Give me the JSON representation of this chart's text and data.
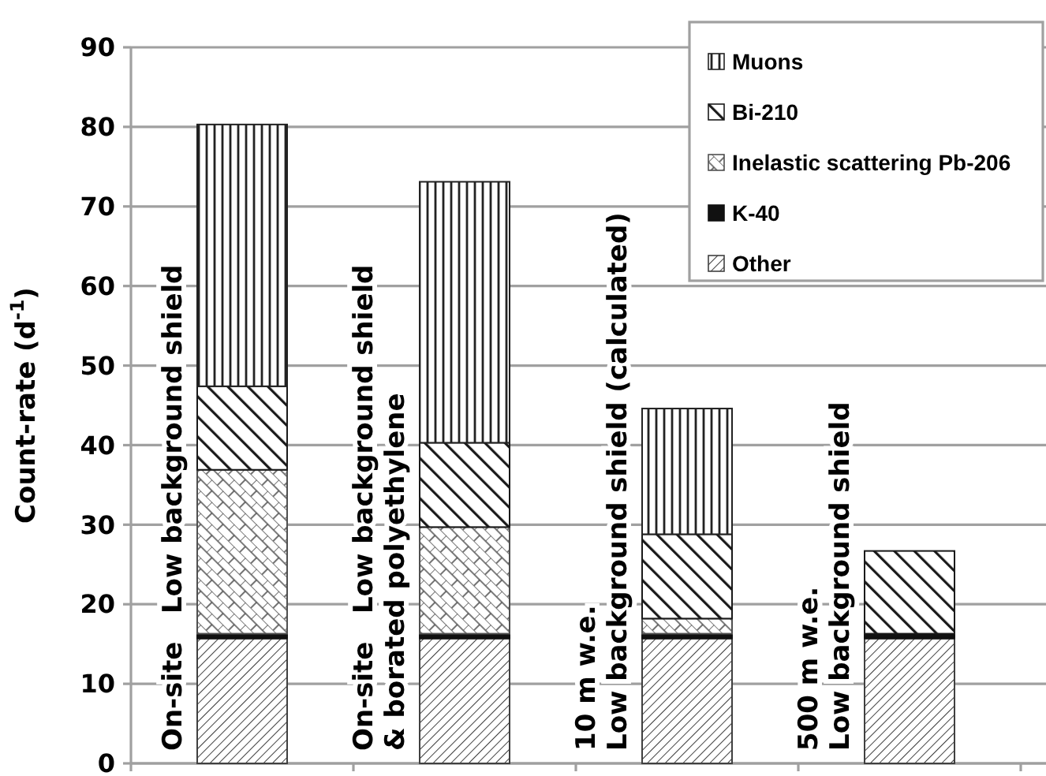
{
  "chart_data": {
    "type": "bar",
    "stacked": true,
    "ylabel": "Count-rate (d$^{-1}$)",
    "categories": [
      "On-site   Low background shield",
      "On-site   Low background shield\n& borated polyethylene",
      "10 m w.e.\nLow background shield (calculated)",
      "500 m w.e.\nLow background shield"
    ],
    "series": [
      {
        "name": "Other",
        "color": "#404040",
        "values": [
          15.7,
          15.7,
          15.7,
          15.7
        ]
      },
      {
        "name": "K-40",
        "color": "#111111",
        "values": [
          0.6,
          0.6,
          0.6,
          0.6
        ]
      },
      {
        "name": "Inelastic scattering Pb-206",
        "color": "#505050",
        "values": [
          20.6,
          13.4,
          1.9,
          0
        ]
      },
      {
        "name": "Bi-210",
        "color": "#1a1a1a",
        "values": [
          10.5,
          10.6,
          10.6,
          10.4
        ]
      },
      {
        "name": "Muons",
        "color": "#222222",
        "values": [
          32.9,
          32.8,
          15.8,
          0
        ]
      }
    ],
    "ylim": [
      0,
      90
    ],
    "yticks": [
      0,
      10,
      20,
      30,
      40,
      50,
      60,
      70,
      80,
      90
    ],
    "grid": "y",
    "legend": "top right"
  }
}
